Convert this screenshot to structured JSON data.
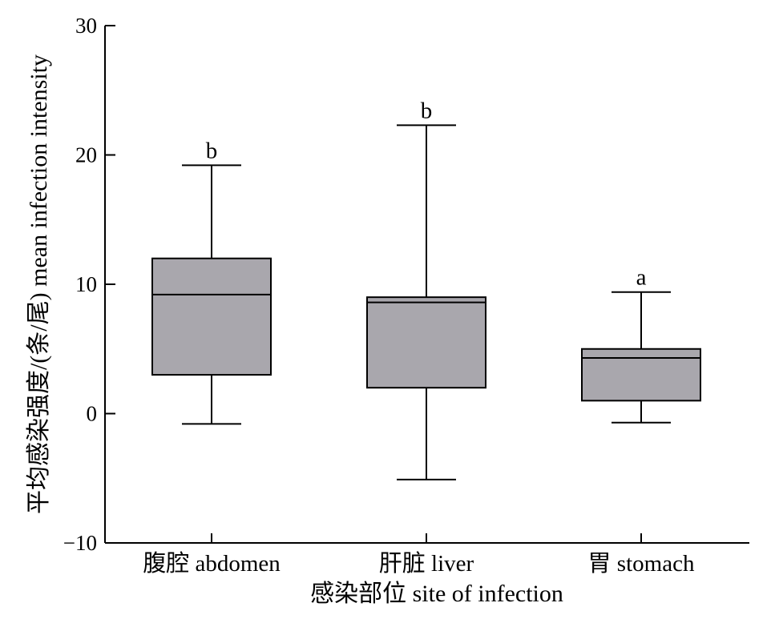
{
  "chart_data": {
    "type": "box",
    "title": "",
    "xlabel": "感染部位 site of infection",
    "ylabel": "平均感染强度/(条/尾) mean infection intensity",
    "ylim": [
      -10,
      30
    ],
    "yticks": [
      {
        "value": -10,
        "label": "−10"
      },
      {
        "value": 0,
        "label": "0"
      },
      {
        "value": 10,
        "label": "10"
      },
      {
        "value": 20,
        "label": "20"
      },
      {
        "value": 30,
        "label": "30"
      }
    ],
    "grid": false,
    "legend": "none",
    "box_color": "#a9a7ad",
    "categories": [
      "腹腔 abdomen",
      "肝脏 liver",
      "胃 stomach"
    ],
    "boxes": [
      {
        "category": "腹腔 abdomen",
        "whisker_low": -0.8,
        "q1": 3.0,
        "median": 9.2,
        "q3": 12.0,
        "whisker_high": 19.2,
        "significance": "b"
      },
      {
        "category": "肝脏 liver",
        "whisker_low": -5.1,
        "q1": 2.0,
        "median": 8.6,
        "q3": 9.0,
        "whisker_high": 22.3,
        "significance": "b"
      },
      {
        "category": "胃 stomach",
        "whisker_low": -0.7,
        "q1": 1.0,
        "median": 4.3,
        "q3": 5.0,
        "whisker_high": 9.4,
        "significance": "a"
      }
    ]
  }
}
